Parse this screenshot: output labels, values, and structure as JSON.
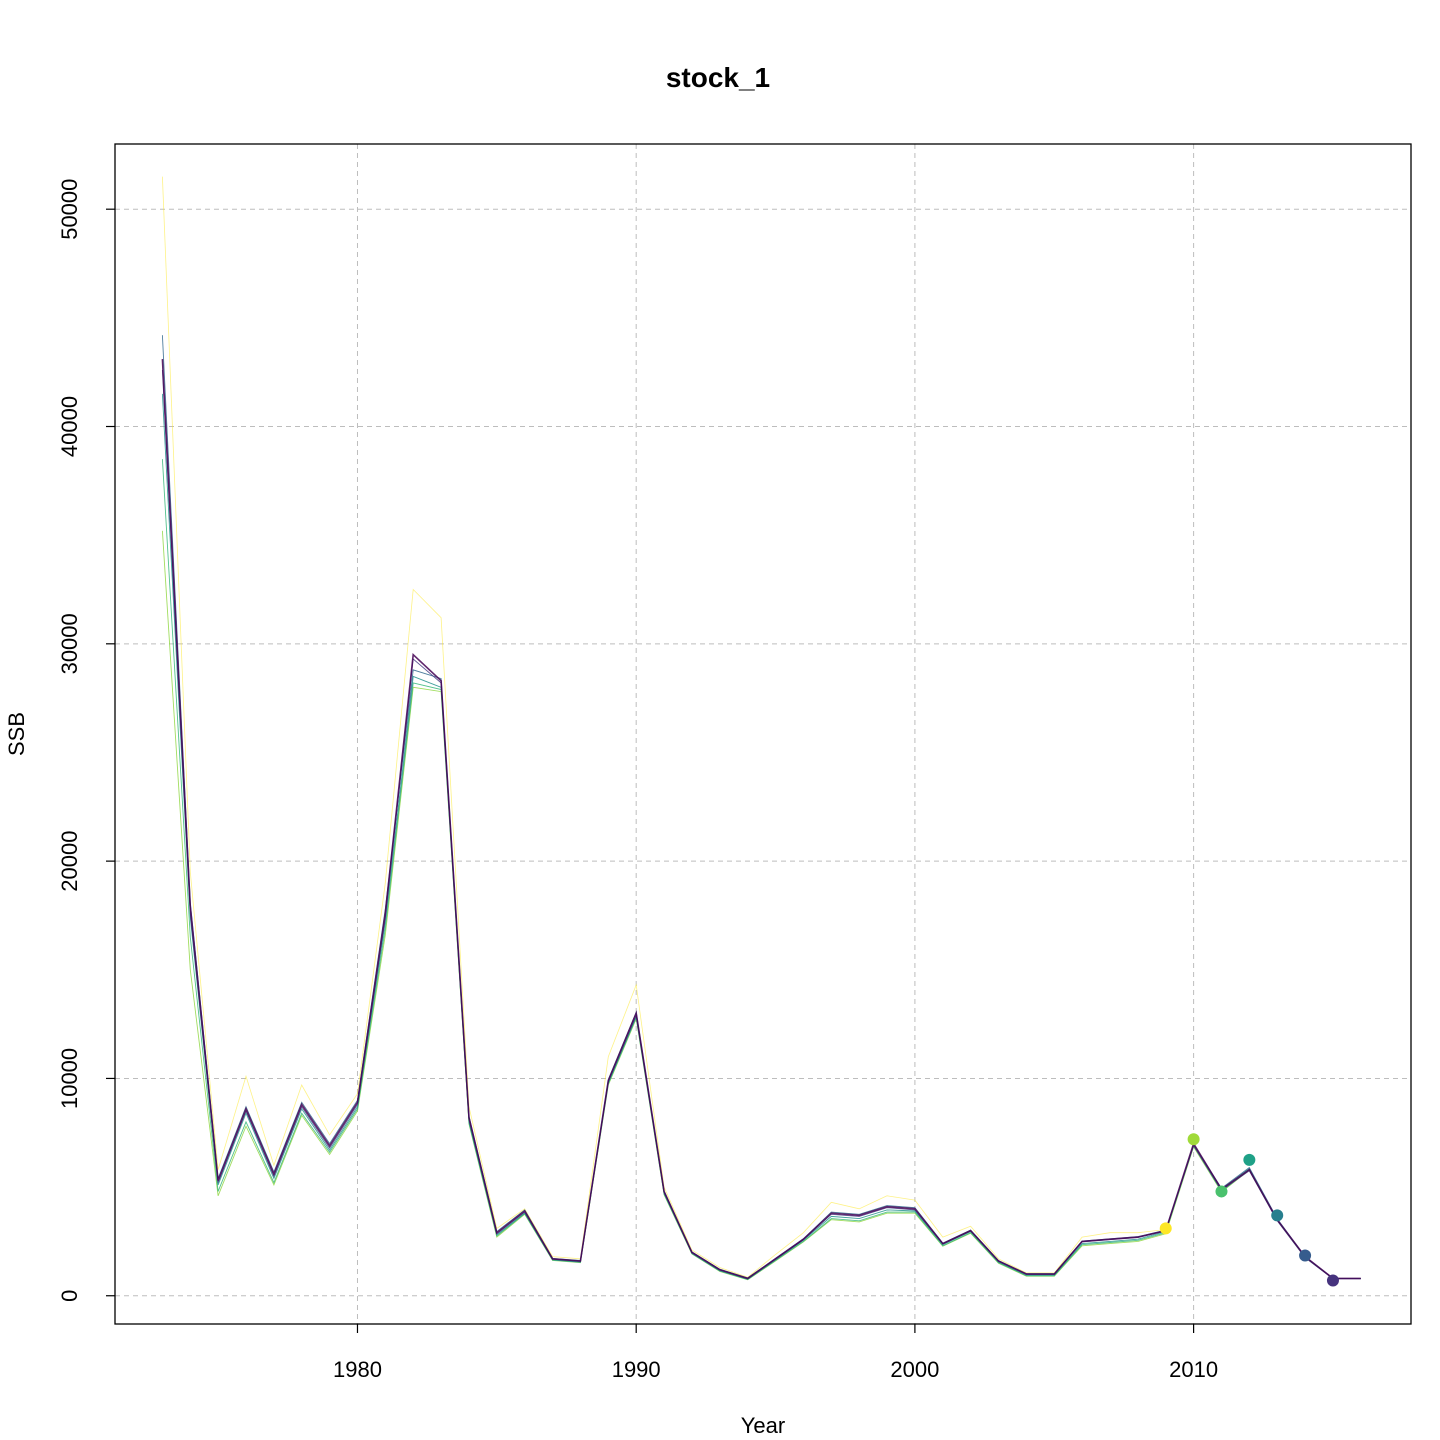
{
  "chart_data": {
    "type": "line",
    "title": "stock_1",
    "xlabel": "Year",
    "ylabel": "SSB",
    "xlim": [
      1971.3,
      2017.8
    ],
    "ylim": [
      -1300,
      53000
    ],
    "x_ticks": [
      1980,
      1990,
      2000,
      2010
    ],
    "x_tick_labels": [
      "1980",
      "1990",
      "2000",
      "2010"
    ],
    "y_ticks": [
      0,
      10000,
      20000,
      30000,
      40000,
      50000
    ],
    "y_tick_labels": [
      "0",
      "10000",
      "20000",
      "30000",
      "40000",
      "50000"
    ],
    "grid": true,
    "x": [
      1973,
      1974,
      1975,
      1976,
      1977,
      1978,
      1979,
      1980,
      1981,
      1982,
      1983,
      1984,
      1985,
      1986,
      1987,
      1988,
      1989,
      1990,
      1991,
      1992,
      1993,
      1994,
      1995,
      1996,
      1997,
      1998,
      1999,
      2000,
      2001,
      2002,
      2003,
      2004,
      2005,
      2006,
      2007,
      2008,
      2009,
      2010,
      2011,
      2012,
      2013,
      2014,
      2015,
      2016
    ],
    "series": [
      {
        "color": "#440154",
        "values": [
          43100,
          17900,
          5300,
          8600,
          5600,
          8800,
          6900,
          8900,
          17600,
          29500,
          28300,
          8200,
          2900,
          3900,
          1700,
          1600,
          9900,
          13000,
          4800,
          2000,
          1200,
          800,
          1700,
          2600,
          3800,
          3700,
          4100,
          4000,
          2400,
          3000,
          1600,
          1000,
          1000,
          2500,
          2600,
          2700,
          3000,
          7000,
          4900,
          5800,
          3500,
          1800,
          800,
          800
        ]
      },
      {
        "color": "#443a83",
        "values": [
          42600,
          17600,
          5200,
          8500,
          5500,
          8700,
          6800,
          8800,
          17400,
          29300,
          28200,
          8100,
          2850,
          3850,
          1680,
          1580,
          9850,
          12900,
          4750,
          1980,
          1180,
          780,
          1680,
          2580,
          3750,
          3650,
          4050,
          3950,
          2380,
          2980,
          1580,
          980,
          980,
          2480,
          2580,
          2680,
          2980,
          6900,
          4850,
          5750,
          3450,
          1750,
          780,
          780
        ]
      },
      {
        "color": "#31688e",
        "values": [
          44200,
          18100,
          5400,
          8700,
          5700,
          8900,
          7000,
          9000,
          17800,
          28800,
          28400,
          8250,
          2950,
          3950,
          1720,
          1620,
          9950,
          13050,
          4820,
          2020,
          1220,
          820,
          1720,
          2620,
          3850,
          3750,
          4150,
          4050,
          2420,
          3020,
          1620,
          1020,
          1020,
          2520,
          2620,
          2720,
          3020,
          6950,
          4950,
          5900,
          3550,
          1800,
          800,
          800
        ]
      },
      {
        "color": "#21918c",
        "values": [
          41500,
          17400,
          5100,
          8400,
          5400,
          8600,
          6700,
          8700,
          17200,
          28500,
          28000,
          8000,
          2800,
          3800,
          1650,
          1550,
          9800,
          12850,
          4700,
          1950,
          1150,
          760,
          1650,
          2550,
          3650,
          3550,
          3950,
          3900,
          2350,
          2950,
          1550,
          950,
          950,
          2400,
          2500,
          2600,
          2950,
          6950,
          4900,
          5850,
          3500,
          1780,
          790,
          790
        ]
      },
      {
        "color": "#35b779",
        "values": [
          38500,
          16500,
          4800,
          8000,
          5200,
          8400,
          6600,
          8600,
          16900,
          28200,
          27900,
          7950,
          2750,
          3780,
          1640,
          1540,
          9750,
          12800,
          4680,
          1940,
          1140,
          750,
          1620,
          2500,
          3550,
          3450,
          3850,
          3850,
          2300,
          2900,
          1520,
          920,
          920,
          2350,
          2450,
          2550,
          2900,
          6900,
          4800,
          5800,
          3480,
          1770,
          790,
          790
        ]
      },
      {
        "color": "#90d743",
        "values": [
          35200,
          15000,
          4600,
          7800,
          5100,
          8300,
          6500,
          8500,
          16600,
          28000,
          27800,
          7900,
          2700,
          3750,
          1620,
          1520,
          9700,
          12750,
          4650,
          1920,
          1120,
          740,
          1600,
          2480,
          3500,
          3400,
          3800,
          3800,
          2280,
          2880,
          1500,
          900,
          900,
          2300,
          2400,
          2500,
          2850,
          6850,
          4780,
          5780,
          3470,
          1760,
          790,
          790
        ]
      },
      {
        "color": "#fde725",
        "values": [
          51500,
          19500,
          5800,
          10100,
          6000,
          9700,
          7400,
          9300,
          19000,
          32500,
          31200,
          8700,
          3100,
          4000,
          1800,
          1700,
          11000,
          14300,
          5000,
          2100,
          1300,
          850,
          1900,
          2900,
          4300,
          4000,
          4600,
          4400,
          2700,
          3200,
          1700,
          1050,
          1050,
          2700,
          2900,
          2900,
          3050,
          null,
          null,
          null,
          null,
          null,
          null,
          null
        ]
      }
    ],
    "points": [
      {
        "x": 2009,
        "y": 3100,
        "color": "#fde725"
      },
      {
        "x": 2010,
        "y": 7200,
        "color": "#a0da39"
      },
      {
        "x": 2011,
        "y": 4800,
        "color": "#4ac16d"
      },
      {
        "x": 2012,
        "y": 6250,
        "color": "#1fa187"
      },
      {
        "x": 2013,
        "y": 3700,
        "color": "#277f8e"
      },
      {
        "x": 2014,
        "y": 1850,
        "color": "#365c8d"
      },
      {
        "x": 2015,
        "y": 700,
        "color": "#46337e"
      }
    ]
  }
}
